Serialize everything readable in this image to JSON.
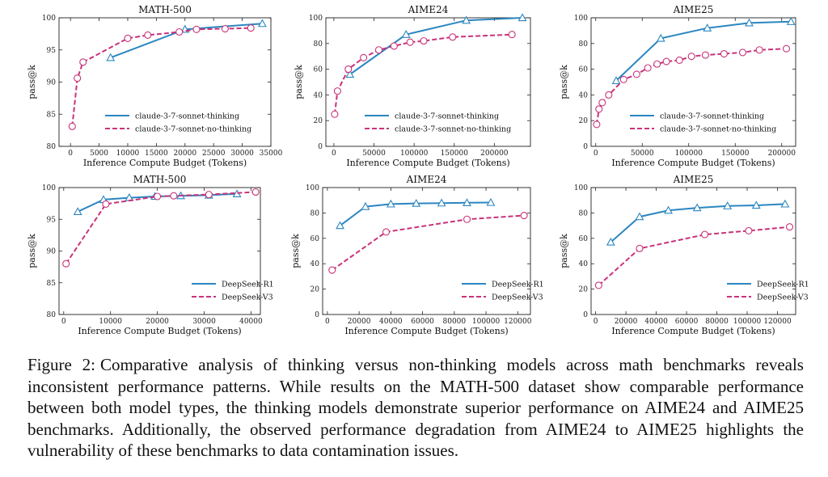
{
  "colors": {
    "series_a": "#2b86c1",
    "series_b": "#c8337a",
    "marker_fill": "#ffffff"
  },
  "caption": {
    "label": "Figure 2:",
    "text": "Comparative analysis of thinking versus non-thinking models across math benchmarks reveals inconsistent performance patterns. While results on the MATH-500 dataset show comparable performance between both model types, the thinking models demonstrate superior performance on AIME24 and AIME25 benchmarks. Additionally, the observed performance degradation from AIME24 to AIME25 highlights the vulnerability of these benchmarks to data contamination issues."
  },
  "chart_data": [
    {
      "type": "line",
      "title": "MATH-500",
      "xlabel": "Inference Compute Budget (Tokens)",
      "ylabel": "pass@k",
      "xlim": [
        -2000,
        35000
      ],
      "ylim": [
        80,
        100
      ],
      "xticks": [
        0,
        5000,
        10000,
        15000,
        20000,
        25000,
        30000,
        35000
      ],
      "yticks": [
        80,
        85,
        90,
        95,
        100
      ],
      "legend": "lower-right",
      "series": [
        {
          "name": "claude-3-7-sonnet-thinking",
          "style": "solid",
          "marker": "triangle",
          "x": [
            7000,
            20000,
            33500
          ],
          "y": [
            93.8,
            98.2,
            99.1
          ]
        },
        {
          "name": "claude-3-7-sonnet-no-thinking",
          "style": "dashed",
          "marker": "circle",
          "x": [
            300,
            1200,
            2200,
            10000,
            13500,
            19000,
            22000,
            27000,
            31500
          ],
          "y": [
            83.1,
            90.6,
            93.1,
            96.8,
            97.3,
            97.8,
            98.2,
            98.3,
            98.4
          ]
        }
      ]
    },
    {
      "type": "line",
      "title": "AIME24",
      "xlabel": "Inference Compute Budget (Tokens)",
      "ylabel": "pass@k",
      "xlim": [
        -10000,
        245000
      ],
      "ylim": [
        0,
        100
      ],
      "xticks": [
        0,
        50000,
        100000,
        150000,
        200000
      ],
      "yticks": [
        0,
        20,
        40,
        60,
        80,
        100
      ],
      "legend": "lower-right",
      "series": [
        {
          "name": "claude-3-7-sonnet-thinking",
          "style": "solid",
          "marker": "triangle",
          "x": [
            20000,
            90000,
            165000,
            235000
          ],
          "y": [
            56,
            87,
            98,
            100
          ]
        },
        {
          "name": "claude-3-7-sonnet-no-thinking",
          "style": "dashed",
          "marker": "circle",
          "x": [
            1000,
            4500,
            18000,
            37000,
            56000,
            75000,
            95000,
            112000,
            148000,
            222000
          ],
          "y": [
            25,
            43,
            60,
            69,
            75,
            78,
            81,
            82,
            85,
            87
          ]
        }
      ]
    },
    {
      "type": "line",
      "title": "AIME25",
      "xlabel": "Inference Compute Budget (Tokens)",
      "ylabel": "pass@k",
      "xlim": [
        -5000,
        215000
      ],
      "ylim": [
        0,
        100
      ],
      "xticks": [
        0,
        50000,
        100000,
        150000,
        200000
      ],
      "yticks": [
        0,
        20,
        40,
        60,
        80,
        100
      ],
      "legend": "lower-right",
      "series": [
        {
          "name": "claude-3-7-sonnet-thinking",
          "style": "solid",
          "marker": "triangle",
          "x": [
            22000,
            70000,
            120000,
            165000,
            210000
          ],
          "y": [
            51,
            84,
            92,
            96,
            97
          ]
        },
        {
          "name": "claude-3-7-sonnet-no-thinking",
          "style": "dashed",
          "marker": "circle",
          "x": [
            1000,
            3500,
            7000,
            14000,
            30000,
            44000,
            56000,
            66000,
            76000,
            90000,
            103000,
            118000,
            138000,
            158000,
            176000,
            205000
          ],
          "y": [
            17,
            29,
            34,
            40,
            52,
            56,
            61,
            64,
            66,
            67,
            70,
            71,
            72,
            73,
            75,
            76
          ]
        }
      ]
    },
    {
      "type": "line",
      "title": "MATH-500",
      "xlabel": "Inference Compute Budget (Tokens)",
      "ylabel": "pass@k",
      "xlim": [
        -1000,
        42000
      ],
      "ylim": [
        80,
        100
      ],
      "xticks": [
        0,
        10000,
        20000,
        30000,
        40000
      ],
      "yticks": [
        80,
        85,
        90,
        95,
        100
      ],
      "legend": "lower-right",
      "series": [
        {
          "name": "DeepSeek-R1",
          "style": "solid",
          "marker": "triangle",
          "x": [
            3000,
            8500,
            14000,
            19500,
            25000,
            31000,
            37000
          ],
          "y": [
            96.2,
            98.1,
            98.4,
            98.6,
            98.7,
            98.8,
            99.0
          ]
        },
        {
          "name": "DeepSeek-V3",
          "style": "dashed",
          "marker": "circle",
          "x": [
            500,
            9000,
            20000,
            23500,
            31000,
            41000
          ],
          "y": [
            88.0,
            97.4,
            98.6,
            98.7,
            98.9,
            99.3
          ]
        }
      ]
    },
    {
      "type": "line",
      "title": "AIME24",
      "xlabel": "Inference Compute Budget (Tokens)",
      "ylabel": "pass@k",
      "xlim": [
        -3000,
        128000
      ],
      "ylim": [
        0,
        100
      ],
      "xticks": [
        0,
        20000,
        40000,
        60000,
        80000,
        100000,
        120000
      ],
      "yticks": [
        0,
        20,
        40,
        60,
        80,
        100
      ],
      "legend": "lower-right",
      "series": [
        {
          "name": "DeepSeek-R1",
          "style": "solid",
          "marker": "triangle",
          "x": [
            8000,
            24000,
            40000,
            56000,
            72000,
            88000,
            103000
          ],
          "y": [
            70,
            85,
            87,
            87.5,
            87.8,
            88,
            88.2
          ]
        },
        {
          "name": "DeepSeek-V3",
          "style": "dashed",
          "marker": "circle",
          "x": [
            3000,
            37000,
            88000,
            124000
          ],
          "y": [
            35,
            65,
            75,
            78
          ]
        }
      ]
    },
    {
      "type": "line",
      "title": "AIME25",
      "xlabel": "Inference Compute Budget (Tokens)",
      "ylabel": "pass@k",
      "xlim": [
        -3000,
        132000
      ],
      "ylim": [
        0,
        100
      ],
      "xticks": [
        0,
        20000,
        40000,
        60000,
        80000,
        100000,
        120000
      ],
      "yticks": [
        0,
        20,
        40,
        60,
        80,
        100
      ],
      "legend": "lower-right",
      "series": [
        {
          "name": "DeepSeek-R1",
          "style": "solid",
          "marker": "triangle",
          "x": [
            10000,
            29000,
            48000,
            67000,
            87000,
            106000,
            125000
          ],
          "y": [
            57,
            77,
            82,
            84,
            85.5,
            86,
            87
          ]
        },
        {
          "name": "DeepSeek-V3",
          "style": "dashed",
          "marker": "circle",
          "x": [
            2000,
            29000,
            72000,
            101000,
            128000
          ],
          "y": [
            23,
            52,
            63,
            66,
            69
          ]
        }
      ]
    }
  ]
}
